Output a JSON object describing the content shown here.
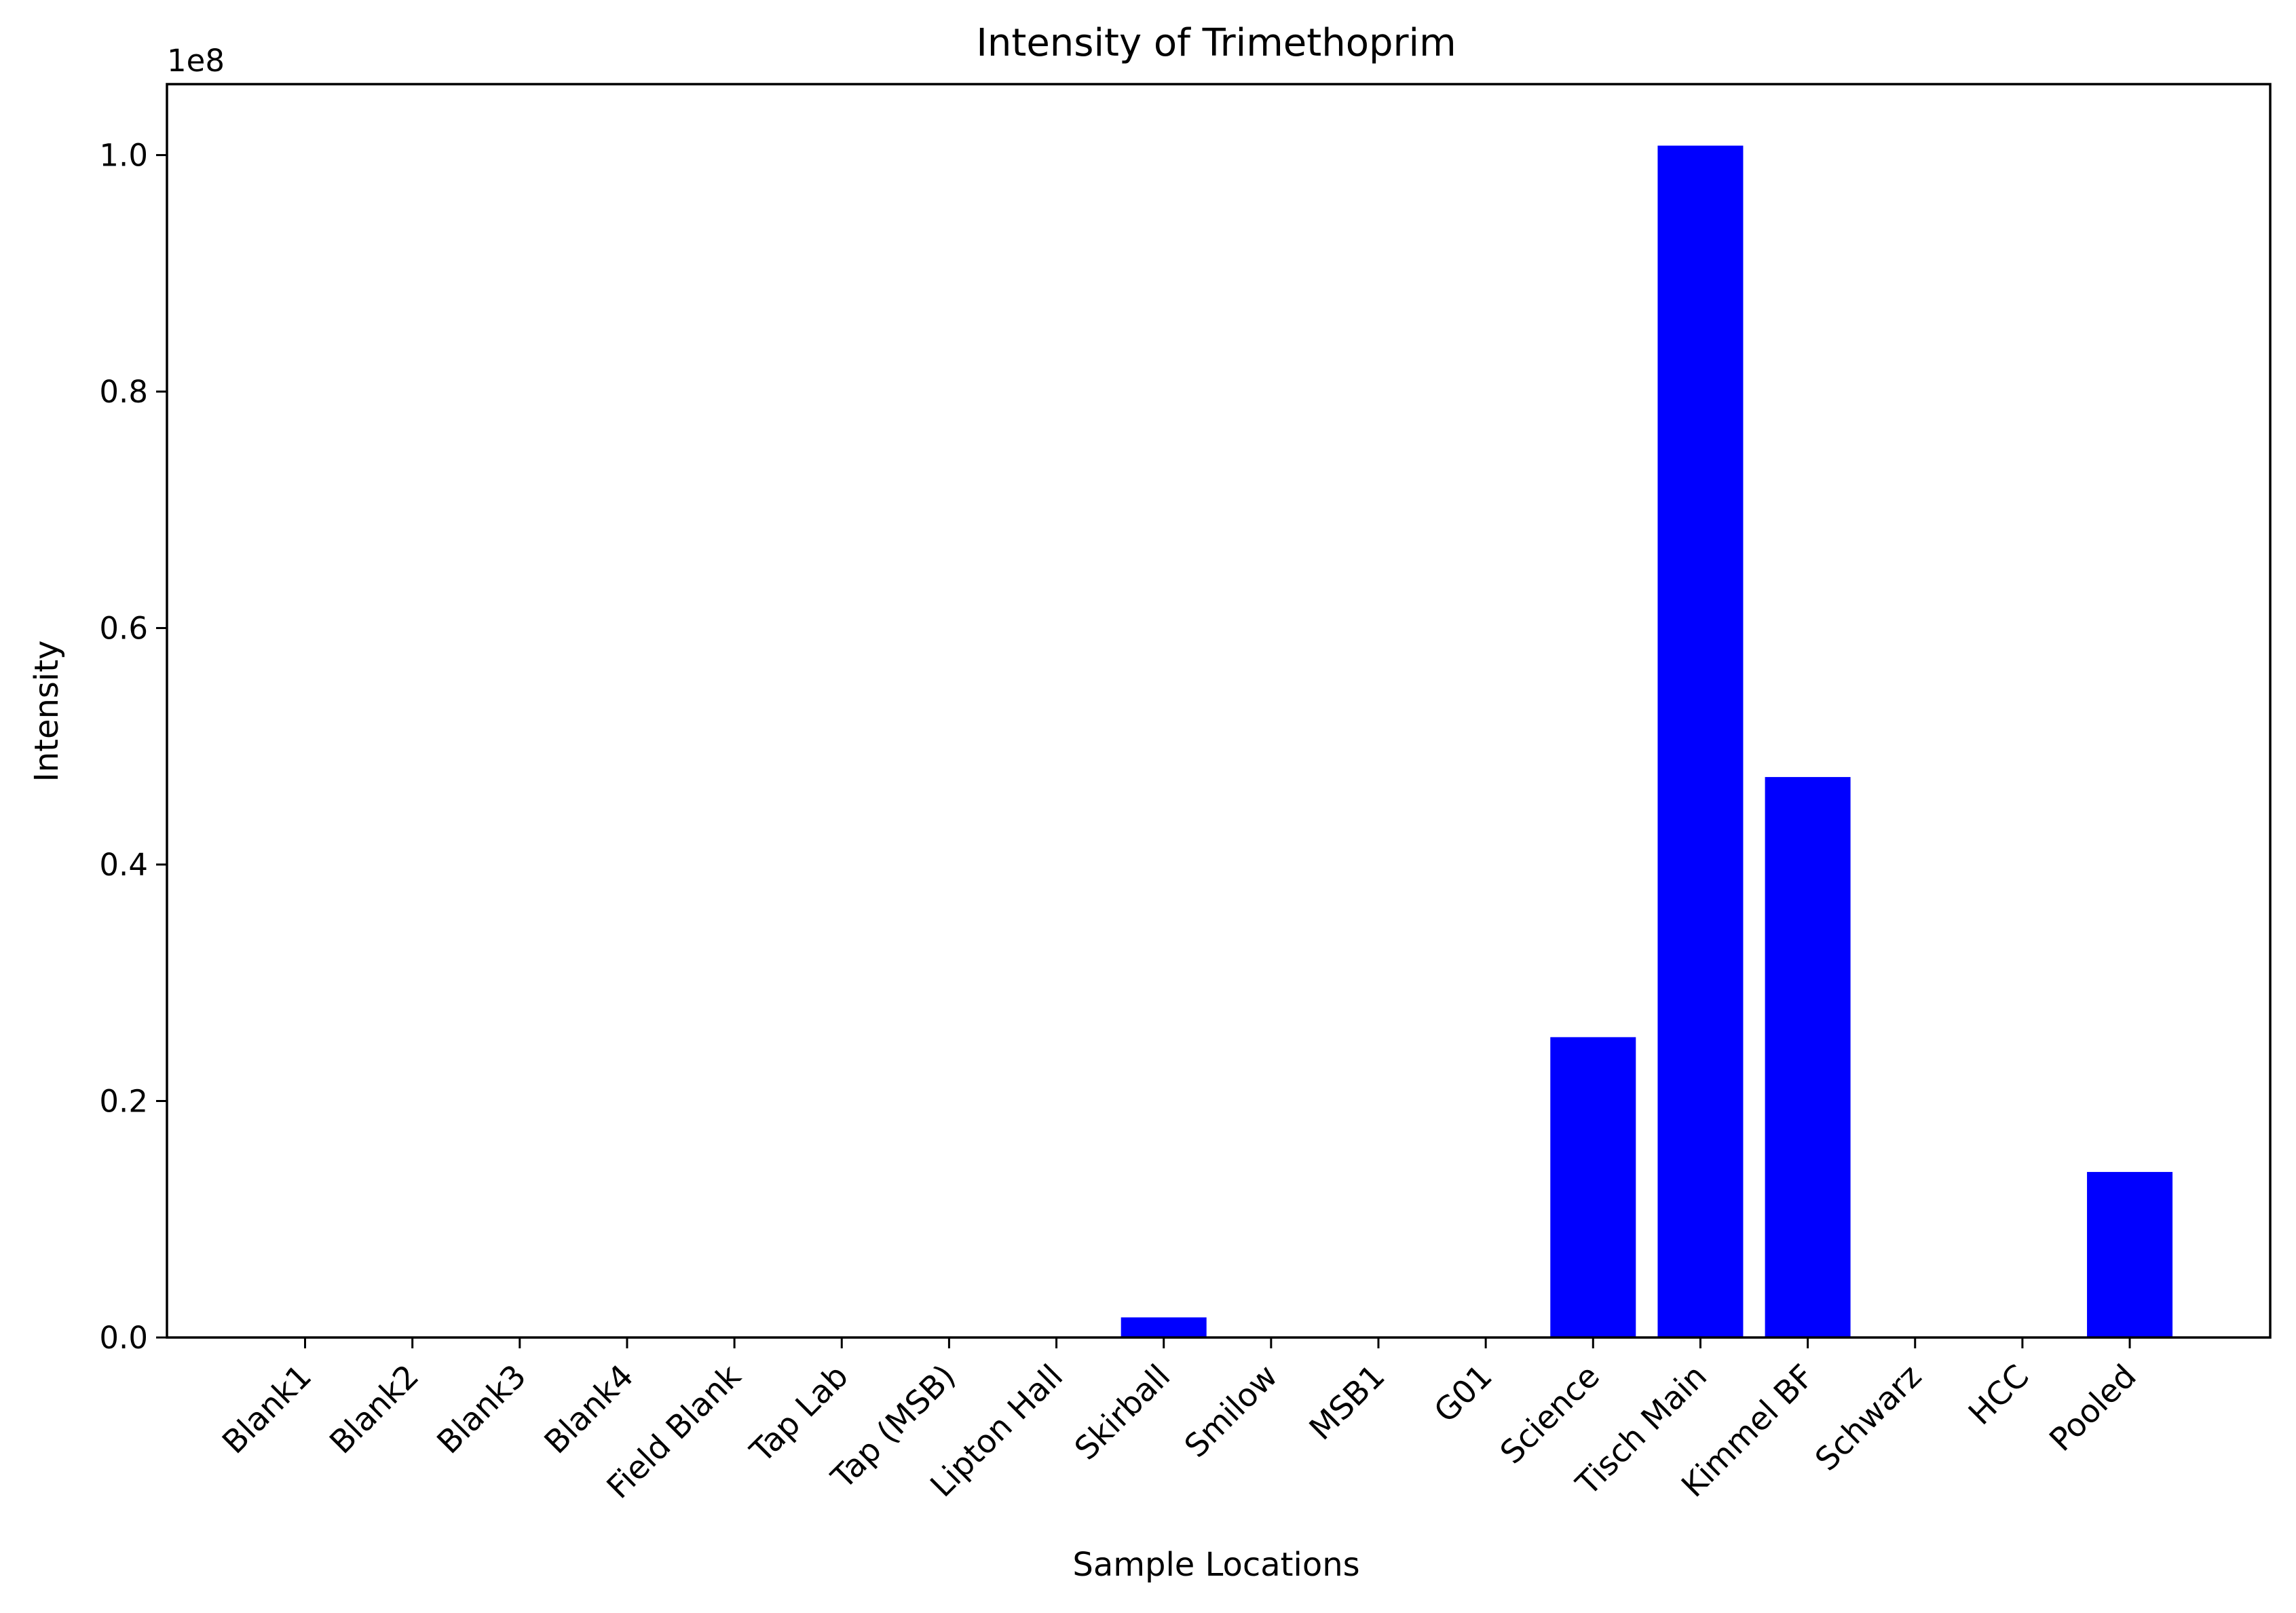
{
  "chart_data": {
    "type": "bar",
    "title": "Intensity of Trimethoprim",
    "xlabel": "Sample Locations",
    "ylabel": "Intensity",
    "offset_label": "1e8",
    "categories": [
      "Blank1",
      "Blank2",
      "Blank3",
      "Blank4",
      "Field Blank",
      "Tap Lab",
      "Tap (MSB)",
      "Lipton Hall",
      "Skirball",
      "Smilow",
      "MSB1",
      "G01",
      "Science",
      "Tisch Main",
      "Kimmel BF",
      "Schwarz",
      "HCC",
      "Pooled"
    ],
    "values": [
      0,
      0,
      0,
      0,
      0,
      0,
      0,
      0,
      1700000,
      0,
      0,
      0,
      25400000,
      100800000,
      47400000,
      0,
      0,
      14000000
    ],
    "ylim": [
      0,
      106000000
    ],
    "yticks": [
      0,
      20000000,
      40000000,
      60000000,
      80000000,
      100000000
    ],
    "ytick_labels": [
      "0.0",
      "0.2",
      "0.4",
      "0.6",
      "0.8",
      "1.0"
    ],
    "bar_color": "#0000ff",
    "grid": false,
    "legend": "none"
  }
}
